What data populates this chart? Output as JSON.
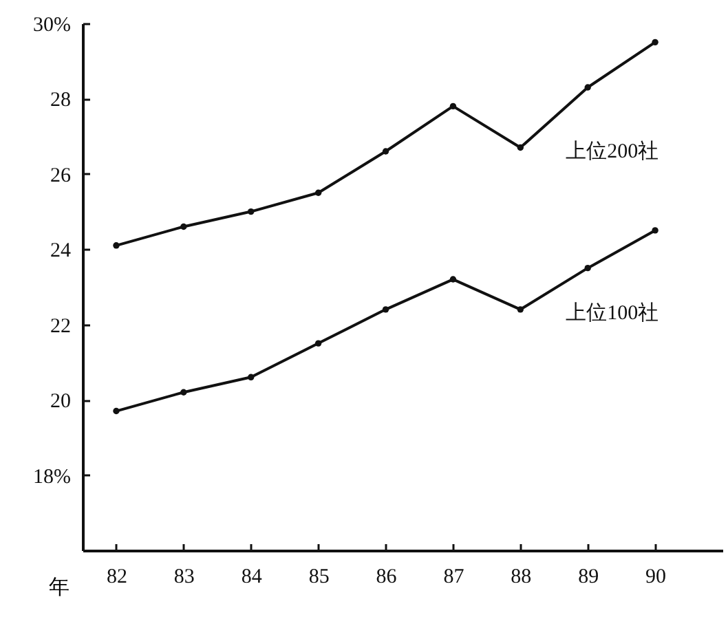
{
  "chart_data": {
    "type": "line",
    "xlabel": "年",
    "x": [
      82,
      83,
      84,
      85,
      86,
      87,
      88,
      89,
      90
    ],
    "xlim": [
      81.5,
      91
    ],
    "xticks": [
      82,
      83,
      84,
      85,
      86,
      87,
      88,
      89,
      90
    ],
    "ylim": [
      16,
      30
    ],
    "yticks": [
      {
        "value": 30,
        "label": "30%"
      },
      28,
      26,
      24,
      22,
      20,
      {
        "value": 18,
        "label": "18%"
      }
    ],
    "series": [
      {
        "name": "上位200社",
        "color": "#111111",
        "values": [
          24.1,
          24.6,
          25.0,
          25.5,
          26.6,
          27.8,
          26.7,
          28.3,
          29.5
        ]
      },
      {
        "name": "上位100社",
        "color": "#111111",
        "values": [
          19.7,
          20.2,
          20.6,
          21.5,
          22.4,
          23.2,
          22.4,
          23.5,
          24.5
        ]
      }
    ],
    "grid": false,
    "marker": "circle",
    "line_style": "solid"
  }
}
